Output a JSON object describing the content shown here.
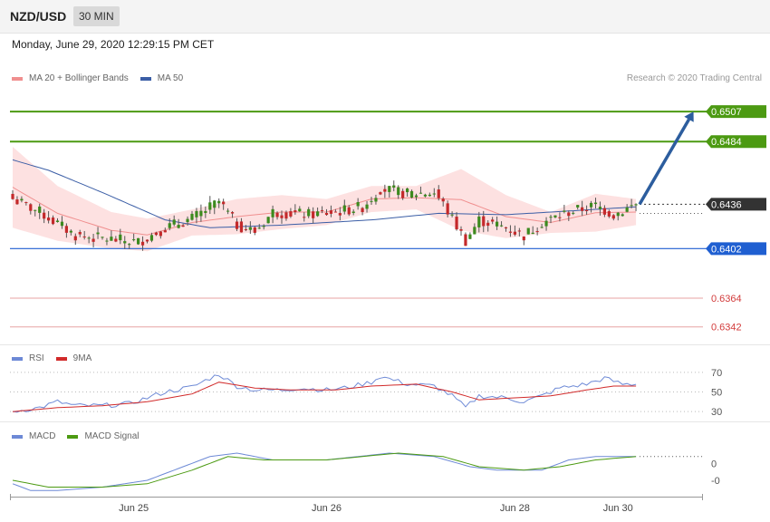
{
  "header": {
    "symbol": "NZD/USD",
    "timeframe": "30 MIN",
    "datetime": "Monday, June 29, 2020 12:29:15 PM CET",
    "copyright": "Research © 2020 Trading Central"
  },
  "colors": {
    "bollinger": "#f08f8f",
    "ma50": "#3b5ea6",
    "resistance": "#4c9a12",
    "support": "#1f5fd1",
    "current": "#333333",
    "lower_levels": "#d23b3b",
    "rsi": "#6d89d6",
    "rsi_ma": "#d12a2a",
    "macd": "#6d89d6",
    "macd_signal": "#4c9a12",
    "candle_up": "#3c8a1e",
    "candle_down": "#c4292b",
    "arrow": "#2c5d9e"
  },
  "chart_data": [
    {
      "type": "candlestick",
      "name": "price",
      "legend": [
        {
          "label": "MA 20 + Bollinger Bands",
          "color": "#f08f8f"
        },
        {
          "label": "MA 50",
          "color": "#3b5ea6"
        }
      ],
      "ylim": [
        0.633,
        0.653
      ],
      "x_ticks": [
        "Jun 25",
        "Jun 26",
        "Jun 28",
        "Jun 30"
      ],
      "x_tick_index": [
        27,
        70,
        112,
        135
      ],
      "bar_count": 140,
      "levels": [
        {
          "value": 0.6507,
          "label": "0.6507",
          "kind": "resistance"
        },
        {
          "value": 0.6484,
          "label": "0.6484",
          "kind": "resistance"
        },
        {
          "value": 0.6436,
          "label": "0.6436",
          "kind": "current"
        },
        {
          "value": 0.6402,
          "label": "0.6402",
          "kind": "support"
        },
        {
          "value": 0.6364,
          "label": "0.6364",
          "kind": "lower"
        },
        {
          "value": 0.6342,
          "label": "0.6342",
          "kind": "lower"
        }
      ],
      "close_anchors": [
        [
          0,
          0.644
        ],
        [
          6,
          0.643
        ],
        [
          14,
          0.6412
        ],
        [
          22,
          0.6409
        ],
        [
          28,
          0.6407
        ],
        [
          34,
          0.6418
        ],
        [
          40,
          0.6425
        ],
        [
          46,
          0.6438
        ],
        [
          50,
          0.642
        ],
        [
          54,
          0.6415
        ],
        [
          58,
          0.643
        ],
        [
          66,
          0.6428
        ],
        [
          72,
          0.643
        ],
        [
          78,
          0.6434
        ],
        [
          82,
          0.6448
        ],
        [
          88,
          0.6444
        ],
        [
          94,
          0.6445
        ],
        [
          96,
          0.6436
        ],
        [
          101,
          0.6408
        ],
        [
          104,
          0.6424
        ],
        [
          110,
          0.6418
        ],
        [
          114,
          0.6412
        ],
        [
          118,
          0.6422
        ],
        [
          124,
          0.643
        ],
        [
          130,
          0.6435
        ],
        [
          134,
          0.6428
        ],
        [
          139,
          0.6436
        ]
      ],
      "ma50_anchors": [
        [
          0,
          0.647
        ],
        [
          8,
          0.6462
        ],
        [
          20,
          0.6445
        ],
        [
          34,
          0.6424
        ],
        [
          44,
          0.6418
        ],
        [
          60,
          0.642
        ],
        [
          80,
          0.6424
        ],
        [
          95,
          0.6429
        ],
        [
          110,
          0.6428
        ],
        [
          125,
          0.6431
        ],
        [
          139,
          0.6434
        ]
      ],
      "bb_anchors": [
        [
          0,
          0.648,
          0.6418
        ],
        [
          10,
          0.645,
          0.6408
        ],
        [
          22,
          0.643,
          0.6402
        ],
        [
          30,
          0.6425,
          0.64
        ],
        [
          40,
          0.6432,
          0.6412
        ],
        [
          50,
          0.644,
          0.6413
        ],
        [
          60,
          0.6443,
          0.6417
        ],
        [
          70,
          0.644,
          0.642
        ],
        [
          80,
          0.645,
          0.643
        ],
        [
          90,
          0.645,
          0.6432
        ],
        [
          100,
          0.6463,
          0.6416
        ],
        [
          110,
          0.6443,
          0.641
        ],
        [
          120,
          0.643,
          0.6414
        ],
        [
          130,
          0.6444,
          0.6415
        ],
        [
          139,
          0.644,
          0.642
        ]
      ],
      "forecast_arrow": {
        "from": [
          139,
          0.6436
        ],
        "to": [
          149,
          0.6507
        ]
      }
    },
    {
      "type": "line",
      "name": "rsi",
      "legend": [
        {
          "label": "RSI",
          "color": "#6d89d6"
        },
        {
          "label": "9MA",
          "color": "#d12a2a"
        }
      ],
      "ylim": [
        20,
        80
      ],
      "y_ticks": [
        {
          "value": 70,
          "label": "70"
        },
        {
          "value": 50,
          "label": "50"
        },
        {
          "value": 30,
          "label": "30"
        }
      ],
      "rsi_anchors": [
        [
          0,
          30
        ],
        [
          6,
          34
        ],
        [
          10,
          40
        ],
        [
          14,
          36
        ],
        [
          20,
          36
        ],
        [
          26,
          38
        ],
        [
          30,
          44
        ],
        [
          34,
          50
        ],
        [
          40,
          55
        ],
        [
          44,
          64
        ],
        [
          46,
          68
        ],
        [
          50,
          56
        ],
        [
          54,
          52
        ],
        [
          60,
          52
        ],
        [
          64,
          54
        ],
        [
          70,
          52
        ],
        [
          74,
          54
        ],
        [
          80,
          60
        ],
        [
          82,
          66
        ],
        [
          88,
          58
        ],
        [
          94,
          56
        ],
        [
          98,
          46
        ],
        [
          101,
          34
        ],
        [
          104,
          46
        ],
        [
          110,
          44
        ],
        [
          114,
          40
        ],
        [
          118,
          46
        ],
        [
          122,
          54
        ],
        [
          128,
          58
        ],
        [
          132,
          64
        ],
        [
          136,
          58
        ],
        [
          139,
          58
        ]
      ],
      "ma_anchors": [
        [
          0,
          30
        ],
        [
          10,
          34
        ],
        [
          20,
          36
        ],
        [
          30,
          40
        ],
        [
          40,
          48
        ],
        [
          46,
          60
        ],
        [
          54,
          54
        ],
        [
          62,
          52
        ],
        [
          72,
          52
        ],
        [
          80,
          56
        ],
        [
          90,
          58
        ],
        [
          98,
          50
        ],
        [
          104,
          42
        ],
        [
          112,
          44
        ],
        [
          120,
          46
        ],
        [
          128,
          52
        ],
        [
          134,
          56
        ],
        [
          139,
          56
        ]
      ]
    },
    {
      "type": "line",
      "name": "macd",
      "legend": [
        {
          "label": "MACD",
          "color": "#6d89d6"
        },
        {
          "label": "MACD Signal",
          "color": "#4c9a12"
        }
      ],
      "ylim": [
        -0.0009,
        0.0007
      ],
      "y_ticks": [
        {
          "value": 0,
          "label": "0"
        },
        {
          "value": -0.0005,
          "label": "-0"
        }
      ],
      "macd_anchors": [
        [
          0,
          -0.0006
        ],
        [
          4,
          -0.0008
        ],
        [
          10,
          -0.0008
        ],
        [
          20,
          -0.0007
        ],
        [
          30,
          -0.0005
        ],
        [
          36,
          -0.0002
        ],
        [
          44,
          0.0002
        ],
        [
          50,
          0.0003
        ],
        [
          58,
          0.0001
        ],
        [
          70,
          0.0001
        ],
        [
          84,
          0.0003
        ],
        [
          94,
          0.0002
        ],
        [
          102,
          -0.0001
        ],
        [
          108,
          -0.0002
        ],
        [
          118,
          -0.0002
        ],
        [
          124,
          0.0001
        ],
        [
          130,
          0.0002
        ],
        [
          139,
          0.0002
        ]
      ],
      "signal_anchors": [
        [
          0,
          -0.0005
        ],
        [
          8,
          -0.0007
        ],
        [
          20,
          -0.0007
        ],
        [
          30,
          -0.0006
        ],
        [
          40,
          -0.0002
        ],
        [
          48,
          0.0002
        ],
        [
          56,
          0.0001
        ],
        [
          70,
          0.0001
        ],
        [
          86,
          0.0003
        ],
        [
          96,
          0.0002
        ],
        [
          104,
          -0.0001
        ],
        [
          114,
          -0.0002
        ],
        [
          122,
          -0.0001
        ],
        [
          130,
          0.0001
        ],
        [
          139,
          0.0002
        ]
      ]
    }
  ]
}
